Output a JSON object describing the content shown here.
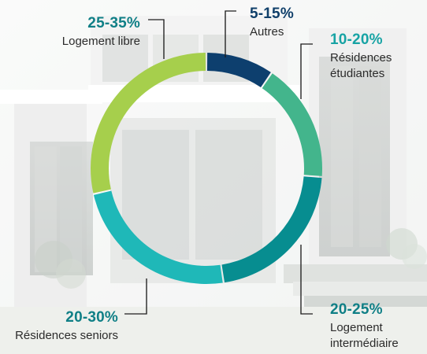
{
  "chart_data": {
    "type": "pie",
    "categories": [
      "Autres",
      "Résidences étudiantes",
      "Logement intermédiaire",
      "Résidences seniors",
      "Logement libre"
    ],
    "series": [
      {
        "values": [
          10,
          17.5,
          22.5,
          25,
          30
        ],
        "range_labels": [
          "5-15%",
          "10-20%",
          "20-25%",
          "20-30%",
          "25-35%"
        ]
      }
    ],
    "colors": [
      "#0d3f6e",
      "#43b58c",
      "#078d90",
      "#1fb8b8",
      "#a6cf4c"
    ],
    "label_colors": [
      "#103f6a",
      "#17a3a4",
      "#0f7f86",
      "#0f7f86",
      "#0f7f86"
    ],
    "title": "",
    "xlabel": "",
    "ylabel": "",
    "ylim": [
      0,
      100
    ],
    "grid": false,
    "legend": "none"
  }
}
